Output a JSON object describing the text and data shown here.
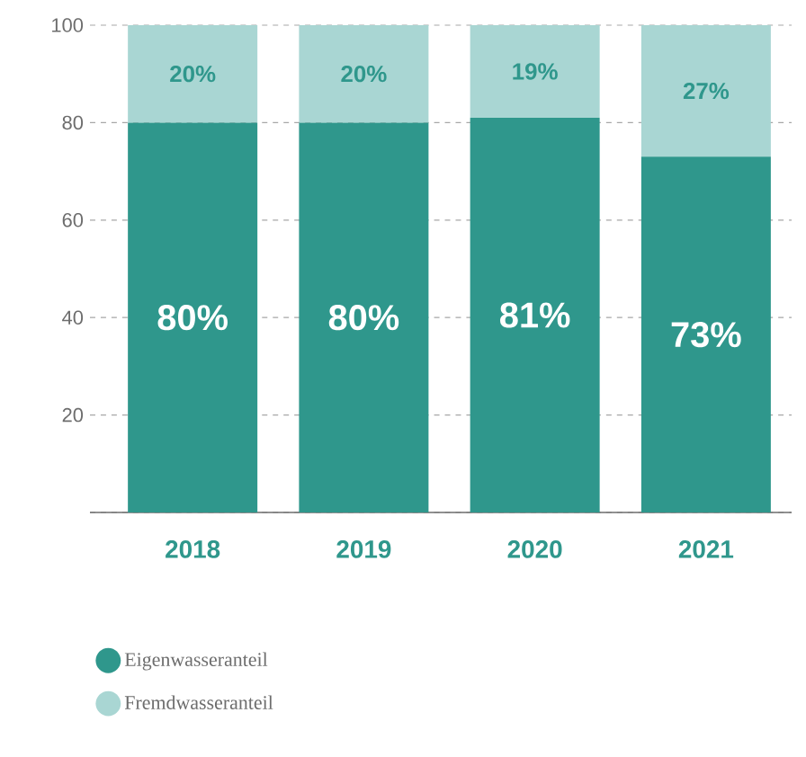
{
  "chart_data": {
    "type": "bar",
    "stacked": true,
    "categories": [
      "2018",
      "2019",
      "2020",
      "2021"
    ],
    "series": [
      {
        "name": "Eigenwasseranteil",
        "color": "#2f978c",
        "values": [
          80,
          80,
          81,
          73
        ],
        "value_labels": [
          "80%",
          "80%",
          "81%",
          "73%"
        ]
      },
      {
        "name": "Fremdwasseranteil",
        "color": "#a9d6d3",
        "values": [
          20,
          20,
          19,
          27
        ],
        "value_labels": [
          "20%",
          "20%",
          "19%",
          "27%"
        ]
      }
    ],
    "ylim": [
      0,
      100
    ],
    "yticks": [
      {
        "value": 0,
        "label": null
      },
      20,
      40,
      60,
      80,
      100
    ],
    "grid": "y",
    "legend": "bottom"
  }
}
